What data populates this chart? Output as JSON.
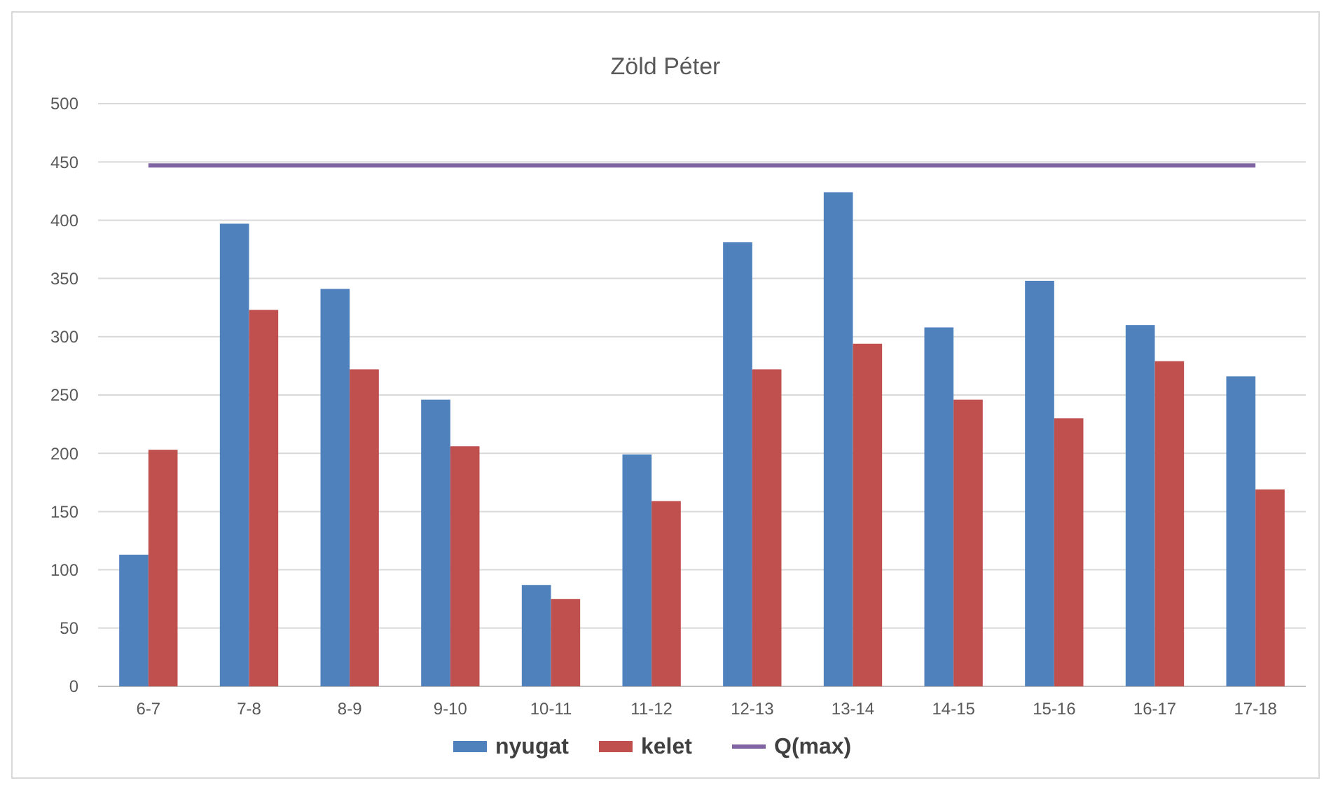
{
  "chart_data": {
    "type": "bar",
    "title": "Zöld Péter",
    "categories": [
      "6-7",
      "7-8",
      "8-9",
      "9-10",
      "10-11",
      "11-12",
      "12-13",
      "13-14",
      "14-15",
      "15-16",
      "16-17",
      "17-18"
    ],
    "series": [
      {
        "name": "nyugat",
        "color": "#4f81bd",
        "values": [
          113,
          397,
          341,
          246,
          87,
          199,
          381,
          424,
          308,
          348,
          310,
          266
        ]
      },
      {
        "name": "kelet",
        "color": "#c0504d",
        "values": [
          203,
          323,
          272,
          206,
          75,
          159,
          272,
          294,
          246,
          230,
          279,
          169
        ]
      },
      {
        "name": "Q(max)",
        "type": "line",
        "color": "#8064a2",
        "values": [
          447,
          447,
          447,
          447,
          447,
          447,
          447,
          447,
          447,
          447,
          447,
          447
        ]
      }
    ],
    "ylim": [
      0,
      500
    ],
    "yticks": [
      0,
      50,
      100,
      150,
      200,
      250,
      300,
      350,
      400,
      450,
      500
    ],
    "grid": "y",
    "legend": "bottom",
    "marker": "none",
    "line_style": "solid"
  }
}
